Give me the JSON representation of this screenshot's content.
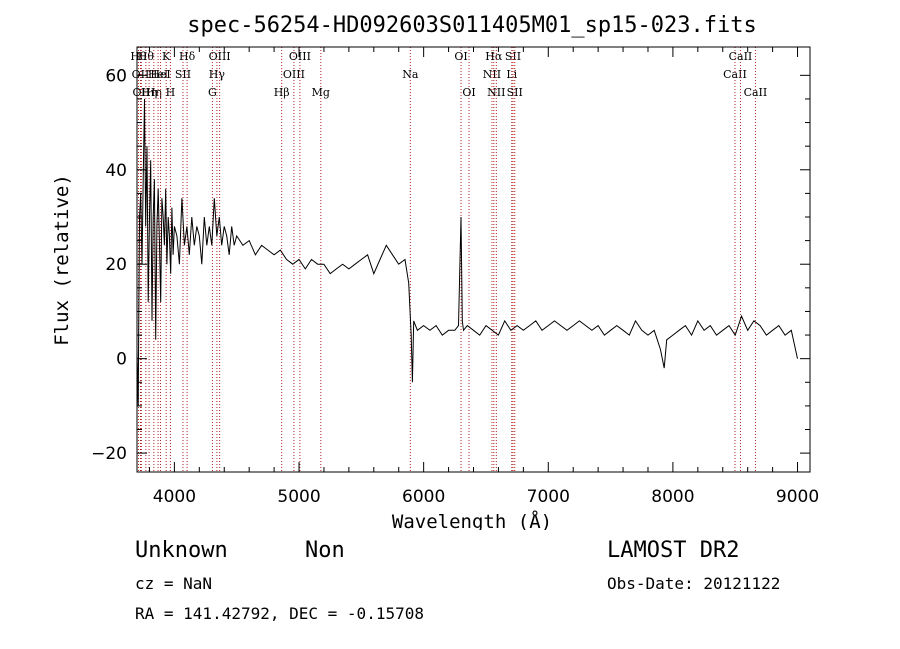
{
  "chart_data": {
    "type": "line",
    "title": "spec-56254-HD092603S011405M01_sp15-023.fits",
    "xlabel": "Wavelength (Å)",
    "ylabel": "Flux (relative)",
    "xlim": [
      3700,
      9100
    ],
    "ylim": [
      -24,
      66
    ],
    "x_ticks": [
      {
        "value": 4000,
        "label": "4000"
      },
      {
        "value": 5000,
        "label": "5000"
      },
      {
        "value": 6000,
        "label": "6000"
      },
      {
        "value": 7000,
        "label": "7000"
      },
      {
        "value": 8000,
        "label": "8000"
      },
      {
        "value": 9000,
        "label": "9000"
      }
    ],
    "y_ticks": [
      {
        "value": -20,
        "label": "−20"
      },
      {
        "value": 0,
        "label": "0"
      },
      {
        "value": 20,
        "label": "20"
      },
      {
        "value": 40,
        "label": "40"
      },
      {
        "value": 60,
        "label": "60"
      }
    ],
    "grid": false,
    "series": [
      {
        "x": [
          3700,
          3710,
          3720,
          3730,
          3740,
          3750,
          3760,
          3770,
          3780,
          3790,
          3800,
          3810,
          3820,
          3830,
          3840,
          3850,
          3860,
          3870,
          3880,
          3890,
          3900,
          3910,
          3920,
          3930,
          3940,
          3950,
          3960,
          3970,
          3980,
          3990,
          4000,
          4020,
          4040,
          4060,
          4080,
          4100,
          4120,
          4140,
          4160,
          4180,
          4200,
          4220,
          4240,
          4260,
          4280,
          4300,
          4320,
          4340,
          4360,
          4380,
          4400,
          4420,
          4440,
          4460,
          4480,
          4500,
          4550,
          4600,
          4650,
          4700,
          4750,
          4800,
          4850,
          4900,
          4950,
          5000,
          5050,
          5100,
          5150,
          5200,
          5250,
          5300,
          5350,
          5400,
          5450,
          5500,
          5550,
          5600,
          5650,
          5700,
          5750,
          5800,
          5850,
          5880,
          5900,
          5910,
          5920,
          5950,
          6000,
          6050,
          6100,
          6150,
          6200,
          6250,
          6280,
          6300,
          6310,
          6320,
          6350,
          6400,
          6450,
          6500,
          6550,
          6600,
          6650,
          6700,
          6750,
          6800,
          6850,
          6900,
          6950,
          7000,
          7050,
          7100,
          7150,
          7200,
          7250,
          7300,
          7350,
          7400,
          7450,
          7500,
          7550,
          7600,
          7650,
          7700,
          7750,
          7800,
          7850,
          7900,
          7930,
          7950,
          8000,
          8050,
          8100,
          8150,
          8200,
          8250,
          8300,
          8350,
          8400,
          8450,
          8500,
          8550,
          8600,
          8650,
          8700,
          8750,
          8800,
          8850,
          8900,
          8950,
          9000
        ],
        "y": [
          2,
          -10,
          30,
          35,
          20,
          38,
          55,
          28,
          45,
          12,
          30,
          42,
          8,
          30,
          38,
          4,
          28,
          36,
          25,
          12,
          34,
          30,
          24,
          36,
          20,
          30,
          26,
          18,
          32,
          22,
          28,
          26,
          20,
          34,
          24,
          28,
          22,
          30,
          24,
          28,
          26,
          20,
          30,
          24,
          28,
          24,
          34,
          26,
          30,
          24,
          28,
          26,
          22,
          28,
          24,
          26,
          24,
          25,
          22,
          24,
          23,
          22,
          23,
          21,
          20,
          21,
          19,
          21,
          20,
          20,
          18,
          19,
          20,
          19,
          20,
          21,
          22,
          18,
          21,
          24,
          22,
          20,
          21,
          16,
          5,
          -5,
          8,
          6,
          7,
          6,
          7,
          5,
          6,
          6,
          7,
          30,
          8,
          6,
          7,
          6,
          5,
          7,
          6,
          5,
          8,
          6,
          7,
          6,
          7,
          8,
          6,
          7,
          8,
          7,
          6,
          7,
          8,
          7,
          6,
          7,
          5,
          6,
          7,
          6,
          5,
          8,
          6,
          5,
          6,
          2,
          -2,
          4,
          5,
          6,
          7,
          5,
          8,
          6,
          7,
          5,
          6,
          7,
          5,
          9,
          6,
          8,
          7,
          5,
          6,
          7,
          5,
          6,
          0
        ]
      }
    ],
    "lines": [
      {
        "x": 3712,
        "label": "Hθ",
        "row": 0
      },
      {
        "x": 3728,
        "label": "OII",
        "row": 1
      },
      {
        "x": 3735,
        "label": "OII",
        "row": 2
      },
      {
        "x": 3771,
        "label": "Hθ",
        "row": 0
      },
      {
        "x": 3797,
        "label": "Hη",
        "row": 2
      },
      {
        "x": 3835,
        "label": "Hη",
        "row": 2
      },
      {
        "x": 3869,
        "label": "HeI",
        "row": 1
      },
      {
        "x": 3889,
        "label": "HeI",
        "row": 1
      },
      {
        "x": 3934,
        "label": "K",
        "row": 0
      },
      {
        "x": 3968,
        "label": "H",
        "row": 2
      },
      {
        "x": 4069,
        "label": "SII",
        "row": 1
      },
      {
        "x": 4102,
        "label": "Hδ",
        "row": 0
      },
      {
        "x": 4305,
        "label": "G",
        "row": 2
      },
      {
        "x": 4341,
        "label": "Hγ",
        "row": 1
      },
      {
        "x": 4363,
        "label": "OIII",
        "row": 0
      },
      {
        "x": 4861,
        "label": "Hβ",
        "row": 2
      },
      {
        "x": 4959,
        "label": "OIII",
        "row": 1
      },
      {
        "x": 5007,
        "label": "OIII",
        "row": 0
      },
      {
        "x": 5175,
        "label": "Mg",
        "row": 2
      },
      {
        "x": 5893,
        "label": "Na",
        "row": 1
      },
      {
        "x": 6300,
        "label": "OI",
        "row": 0
      },
      {
        "x": 6364,
        "label": "OI",
        "row": 2
      },
      {
        "x": 6548,
        "label": "NII",
        "row": 1
      },
      {
        "x": 6563,
        "label": "Hα",
        "row": 0
      },
      {
        "x": 6583,
        "label": "NII",
        "row": 2
      },
      {
        "x": 6707,
        "label": "Li",
        "row": 1
      },
      {
        "x": 6717,
        "label": "SII",
        "row": 0
      },
      {
        "x": 6731,
        "label": "SII",
        "row": 2
      },
      {
        "x": 8498,
        "label": "CaII",
        "row": 1
      },
      {
        "x": 8542,
        "label": "CaII",
        "row": 0
      },
      {
        "x": 8662,
        "label": "CaII",
        "row": 2
      }
    ]
  },
  "footer": {
    "object_class": "Unknown",
    "subclass": "Non",
    "survey": "LAMOST DR2",
    "cz": "cz = NaN",
    "obs_date": "Obs-Date: 20121122",
    "coords": "RA = 141.42792, DEC =  -0.15708"
  }
}
